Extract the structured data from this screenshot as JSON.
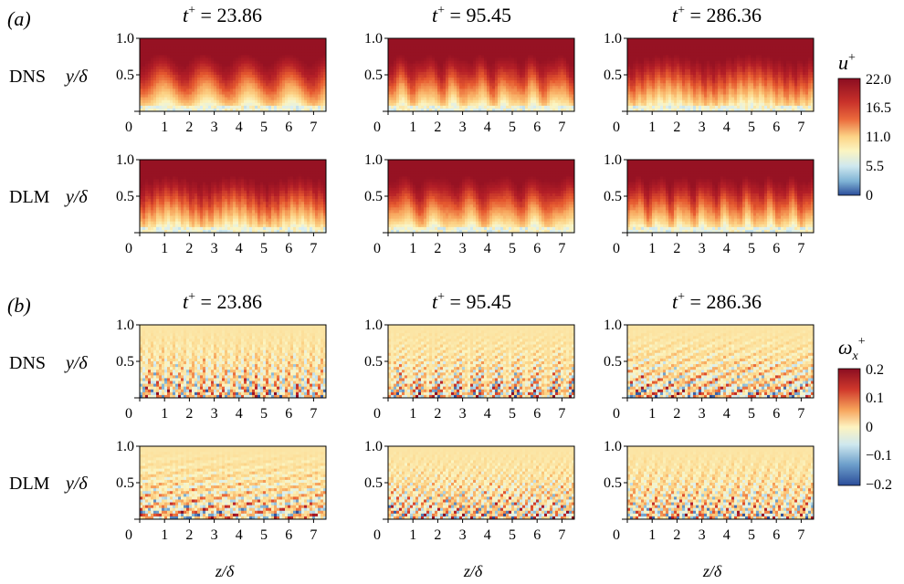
{
  "panel_labels": {
    "a": "(a)",
    "b": "(b)"
  },
  "time_labels": [
    "t+ = 23.86",
    "t+ = 95.45",
    "t+ = 286.36"
  ],
  "time_values": [
    "23.86",
    "95.45",
    "286.36"
  ],
  "row_labels": [
    "DNS",
    "DLM",
    "DNS",
    "DLM"
  ],
  "y_axis_label": "y/δ",
  "x_axis_label": "z/δ",
  "y_ticks": [
    "1.0",
    "0.5"
  ],
  "x_ticks": [
    "0",
    "1",
    "2",
    "3",
    "4",
    "5",
    "6",
    "7"
  ],
  "colorbar_u": {
    "label": "u+",
    "ticks": [
      "22.0",
      "16.5",
      "11.0",
      "5.5",
      "0"
    ],
    "range": [
      0,
      22
    ]
  },
  "colorbar_w": {
    "label": "ωx+",
    "ticks": [
      "0.2",
      "0.1",
      "0",
      "−0.1",
      "−0.2"
    ],
    "range": [
      -0.2,
      0.2
    ]
  },
  "colormap": [
    "#2b4d9a",
    "#4f7fbb",
    "#8ec0dc",
    "#d9eef2",
    "#fbf5c2",
    "#fcd487",
    "#f7a35b",
    "#e5582f",
    "#b41f27",
    "#8b0d21"
  ],
  "chart_data": [
    {
      "type": "heatmap",
      "panel": "(a)",
      "quantity": "u+",
      "rows": [
        "DNS",
        "DLM"
      ],
      "columns_t_plus": [
        23.86,
        95.45,
        286.36
      ],
      "xlabel": "z/δ",
      "ylabel": "y/δ",
      "xlim": [
        0,
        7.5
      ],
      "ylim": [
        0,
        1.0
      ],
      "color_range": [
        0,
        22
      ]
    },
    {
      "type": "heatmap",
      "panel": "(b)",
      "quantity": "ωx+",
      "rows": [
        "DNS",
        "DLM"
      ],
      "columns_t_plus": [
        23.86,
        95.45,
        286.36
      ],
      "xlabel": "z/δ",
      "ylabel": "y/δ",
      "xlim": [
        0,
        7.5
      ],
      "ylim": [
        0,
        1.0
      ],
      "color_range": [
        -0.2,
        0.2
      ]
    }
  ]
}
